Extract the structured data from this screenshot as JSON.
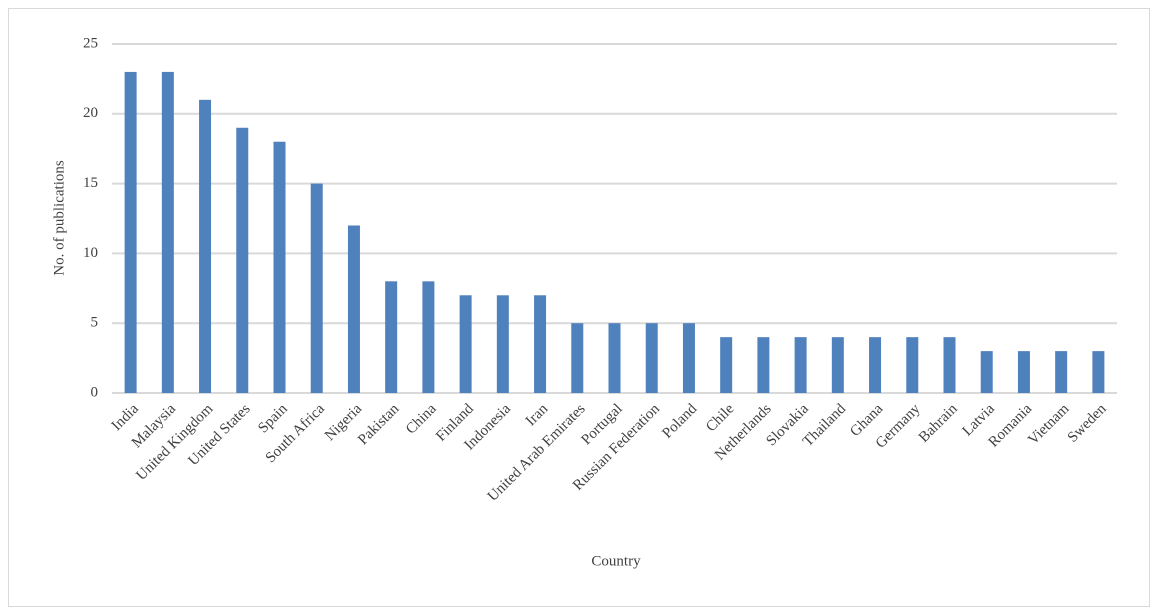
{
  "chart_data": {
    "type": "bar",
    "categories": [
      "India",
      "Malaysia",
      "United Kingdom",
      "United States",
      "Spain",
      "South Africa",
      "Nigeria",
      "Pakistan",
      "China",
      "Finland",
      "Indonesia",
      "Iran",
      "United Arab Emirates",
      "Portugal",
      "Russian Federation",
      "Poland",
      "Chile",
      "Netherlands",
      "Slovakia",
      "Thailand",
      "Ghana",
      "Germany",
      "Bahrain",
      "Latvia",
      "Romania",
      "Vietnam",
      "Sweden"
    ],
    "values": [
      23,
      23,
      21,
      19,
      18,
      15,
      12,
      8,
      8,
      7,
      7,
      7,
      5,
      5,
      5,
      5,
      4,
      4,
      4,
      4,
      4,
      4,
      4,
      3,
      3,
      3,
      3
    ],
    "color": "#4f81bd",
    "x_label": "Country",
    "y_label": "No. of publications",
    "ylim": [
      0,
      25
    ],
    "yticks": [
      0,
      5,
      10,
      15,
      20,
      25
    ],
    "grid": true
  }
}
